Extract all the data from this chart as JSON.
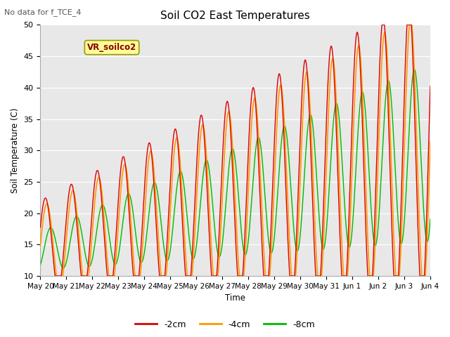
{
  "title": "Soil CO2 East Temperatures",
  "no_data_text": "No data for f_TCE_4",
  "ylabel": "Soil Temperature (C)",
  "xlabel": "Time",
  "ylim": [
    10,
    50
  ],
  "yticks": [
    10,
    15,
    20,
    25,
    30,
    35,
    40,
    45,
    50
  ],
  "xtick_labels": [
    "May 20",
    "May 21",
    "May 22",
    "May 23",
    "May 24",
    "May 25",
    "May 26",
    "May 27",
    "May 28",
    "May 29",
    "May 30",
    "May 31",
    "Jun 1",
    "Jun 2",
    "Jun 3",
    "Jun 4"
  ],
  "legend_label_box": "VR_soilco2",
  "line_2cm_color": "#dd0000",
  "line_4cm_color": "#ff9900",
  "line_8cm_color": "#00bb00",
  "bg_color": "#e8e8e8",
  "legend_labels": [
    "-2cm",
    "-4cm",
    "-8cm"
  ],
  "figsize": [
    6.4,
    4.8
  ],
  "dpi": 100
}
